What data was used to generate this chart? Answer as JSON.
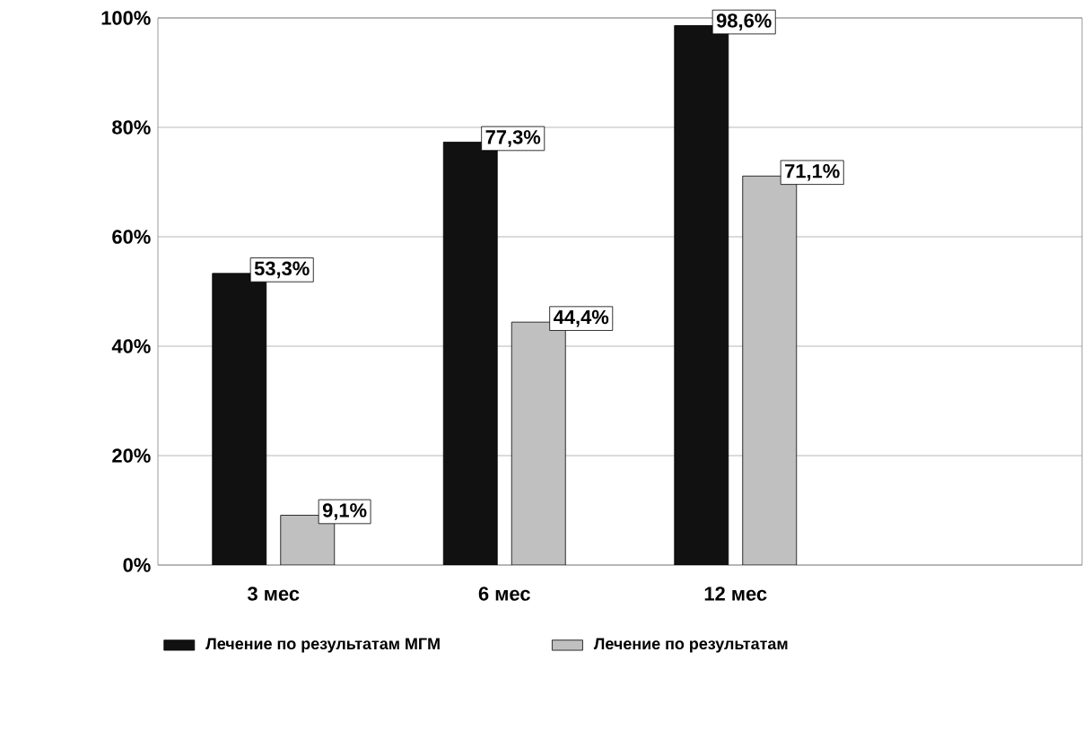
{
  "chart_data": {
    "type": "bar",
    "categories": [
      "3 мес",
      "6 мес",
      "12 мес"
    ],
    "series": [
      {
        "name": "Лечение по результатам МГМ",
        "color": "#111111",
        "values": [
          53.3,
          77.3,
          98.6
        ],
        "value_labels": [
          "53,3%",
          "77,3%",
          "98,6%"
        ]
      },
      {
        "name": "Лечение по результатам",
        "color": "#c0c0c0",
        "values": [
          9.1,
          44.4,
          71.1
        ],
        "value_labels": [
          "9,1%",
          "44,4%",
          "71,1%"
        ]
      }
    ],
    "ylim": [
      0,
      100
    ],
    "yticks": [
      {
        "value": 0,
        "label": "0%"
      },
      {
        "value": 20,
        "label": "20%"
      },
      {
        "value": 40,
        "label": "40%"
      },
      {
        "value": 60,
        "label": "60%"
      },
      {
        "value": 80,
        "label": "80%"
      },
      {
        "value": 100,
        "label": "100%"
      }
    ],
    "grid": "y",
    "legend": "bottom"
  }
}
